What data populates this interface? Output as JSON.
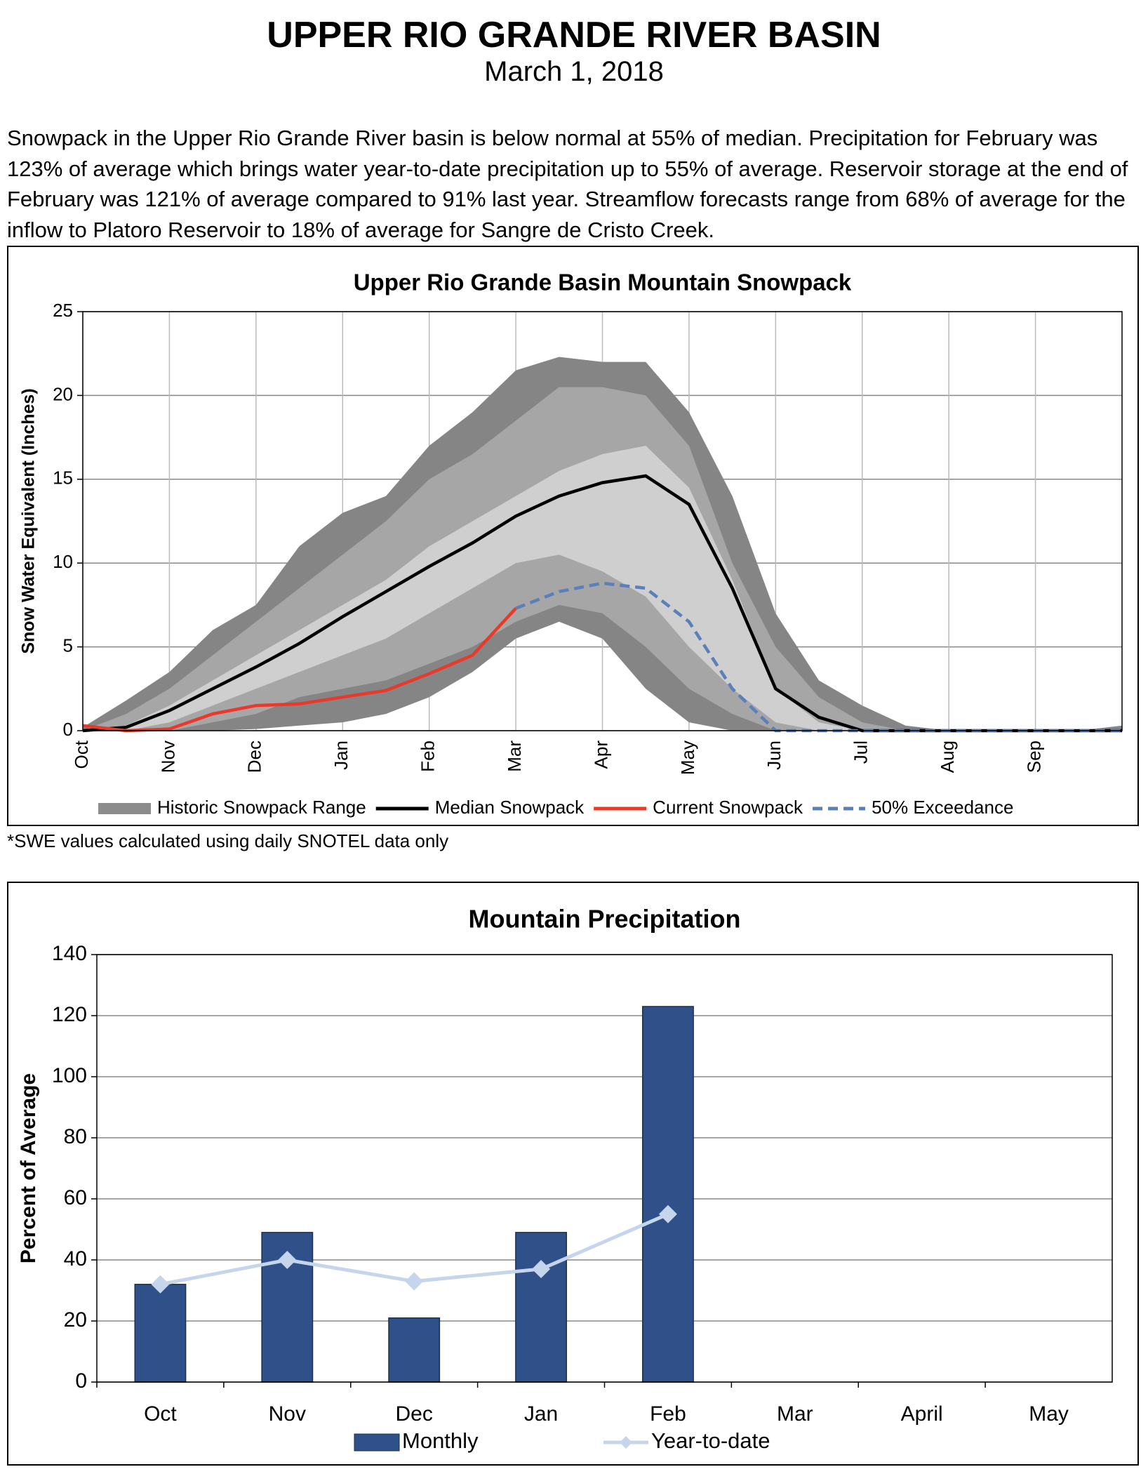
{
  "header": {
    "title": "UPPER RIO GRANDE RIVER BASIN",
    "date": "March 1, 2018"
  },
  "summary": "Snowpack in the Upper Rio Grande River basin is below normal at 55% of median. Precipitation for February was 123% of average which brings water year-to-date precipitation up to 55% of average. Reservoir storage at the end of February was 121% of average compared to 91% last year. Streamflow forecasts range from 68% of average for the inflow to Platoro Reservoir to 18% of average for Sangre de Cristo Creek.",
  "footnote": "*SWE values calculated using daily SNOTEL data only",
  "chart_data": [
    {
      "type": "line",
      "title": "Upper Rio Grande Basin Mountain Snowpack",
      "y_label": "Snow Water Equivalent (Inches)",
      "categories": [
        "Oct",
        null,
        "Nov",
        null,
        "Dec",
        null,
        "Jan",
        null,
        "Feb",
        null,
        "Mar",
        null,
        "Apr",
        null,
        "May",
        null,
        "Jun",
        null,
        "Jul",
        null,
        "Aug",
        null,
        "Sep",
        null,
        null
      ],
      "ylim": [
        0,
        25
      ],
      "yticks": [
        0,
        5,
        10,
        15,
        20,
        25
      ],
      "grid": true,
      "range": {
        "name": "Historic Snowpack Range",
        "color": "#8c8c8c",
        "bands": [
          {
            "color": "#858585",
            "low": [
              0,
              0,
              0,
              0,
              0.1,
              0.3,
              0.5,
              1,
              2,
              3.5,
              5.5,
              6.5,
              5.5,
              2.5,
              0.5,
              0,
              0,
              0,
              0,
              0,
              0,
              0,
              0,
              0,
              0
            ],
            "high": [
              0.2,
              1.8,
              3.5,
              6,
              7.5,
              11,
              13,
              14,
              17,
              19,
              21.5,
              22.3,
              22,
              22,
              19,
              14,
              7,
              3,
              1.5,
              0.3,
              0,
              0,
              0,
              0,
              0.3
            ]
          },
          {
            "color": "#a6a6a6",
            "low": [
              0,
              0,
              0,
              0.5,
              1,
              2,
              2.5,
              3,
              4,
              5,
              6.5,
              7.5,
              7,
              5,
              2.5,
              1,
              0,
              0,
              0,
              0,
              0,
              0,
              0,
              0,
              0
            ],
            "high": [
              0,
              1,
              2.5,
              4.5,
              6.5,
              8.5,
              10.5,
              12.5,
              15,
              16.5,
              18.5,
              20.5,
              20.5,
              20,
              17,
              10,
              5,
              2,
              0.5,
              0,
              0,
              0,
              0,
              0,
              0
            ]
          },
          {
            "color": "#cfcfcf",
            "low": [
              0,
              0,
              0.5,
              1.5,
              2.5,
              3.5,
              4.5,
              5.5,
              7,
              8.5,
              10,
              10.5,
              9.5,
              8,
              5,
              2.5,
              0.5,
              0,
              0,
              0,
              0,
              0,
              0,
              0,
              0
            ],
            "high": [
              0,
              0.3,
              1.5,
              3,
              4.5,
              6,
              7.5,
              9,
              11,
              12.5,
              14,
              15.5,
              16.5,
              17,
              14.5,
              9,
              2.5,
              0.5,
              0,
              0,
              0,
              0,
              0,
              0,
              0
            ]
          }
        ]
      },
      "series": [
        {
          "name": "Median Snowpack",
          "color": "#000000",
          "dash": false,
          "values": [
            0,
            0.2,
            1.2,
            2.5,
            3.8,
            5.2,
            6.8,
            8.3,
            9.8,
            11.2,
            12.8,
            14,
            14.8,
            15.2,
            13.5,
            8.5,
            2.5,
            0.8,
            0,
            0,
            0,
            0,
            0,
            0,
            0
          ]
        },
        {
          "name": "Current Snowpack",
          "color": "#e8392b",
          "dash": false,
          "values": [
            0.3,
            0,
            0.1,
            1,
            1.5,
            1.6,
            2,
            2.4,
            3.4,
            4.5,
            7.3,
            null,
            null,
            null,
            null,
            null,
            null,
            null,
            null,
            null,
            null,
            null,
            null,
            null,
            null
          ]
        },
        {
          "name": "50% Exceedance",
          "color": "#5b7fb8",
          "dash": true,
          "values": [
            null,
            null,
            null,
            null,
            null,
            null,
            null,
            null,
            null,
            null,
            7.3,
            8.3,
            8.8,
            8.5,
            6.5,
            2.5,
            0,
            0,
            0,
            0,
            0,
            0,
            0,
            0,
            0
          ]
        }
      ]
    },
    {
      "type": "bar",
      "title": "Mountain Precipitation",
      "y_label": "Percent of Average",
      "categories": [
        "Oct",
        "Nov",
        "Dec",
        "Jan",
        "Feb",
        "Mar",
        "April",
        "May"
      ],
      "ylim": [
        0,
        140
      ],
      "yticks": [
        0,
        20,
        40,
        60,
        80,
        100,
        120,
        140
      ],
      "grid": true,
      "series": [
        {
          "name": "Monthly",
          "type": "bar",
          "color": "#2f5088",
          "values": [
            32,
            49,
            21,
            49,
            123,
            null,
            null,
            null
          ]
        },
        {
          "name": "Year-to-date",
          "type": "line",
          "color": "#c5d5ec",
          "values": [
            32,
            40,
            33,
            37,
            55,
            null,
            null,
            null
          ]
        }
      ]
    }
  ]
}
